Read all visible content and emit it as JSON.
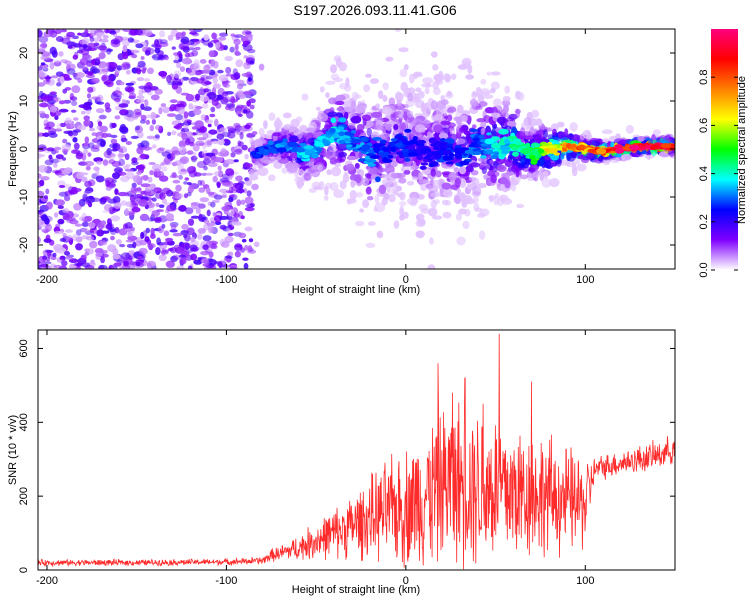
{
  "title": "S197.2026.093.11.41.G06",
  "chart_data": [
    {
      "type": "heatmap",
      "xlabel": "Height of straight line (km)",
      "ylabel": "Frequency (Hz)",
      "xlim": [
        -205,
        150
      ],
      "ylim": [
        -25,
        25
      ],
      "xticks": [
        -200,
        -100,
        0,
        100
      ],
      "yticks": [
        -20,
        -10,
        0,
        10,
        20
      ],
      "colorbar": {
        "label": "Normalized spectral amplitude",
        "range": [
          0,
          1
        ],
        "ticks": [
          0.0,
          0.2,
          0.4,
          0.6,
          0.8
        ],
        "tick_labels": [
          "0.0",
          "0.2",
          "0.4",
          "0.6",
          "0.8"
        ],
        "colors": [
          "#ffffff",
          "#8000ff",
          "#0000ff",
          "#00ffff",
          "#00ff00",
          "#ffff00",
          "#ff8000",
          "#ff0000",
          "#ff0080"
        ]
      },
      "ridge": {
        "x": [
          -85,
          -70,
          -55,
          -40,
          -30,
          -20,
          -10,
          0,
          10,
          20,
          30,
          40,
          50,
          60,
          70,
          80,
          90,
          100,
          110,
          120,
          130,
          140,
          150
        ],
        "freq": [
          -1.5,
          1,
          -1,
          4,
          2,
          -1,
          0,
          1,
          -1,
          0,
          -1,
          1,
          0,
          1,
          -1,
          0,
          0.5,
          0,
          -0.5,
          0,
          0.5,
          0.5,
          0.5
        ],
        "amplitude": [
          0.25,
          0.3,
          0.35,
          0.35,
          0.3,
          0.3,
          0.25,
          0.25,
          0.2,
          0.25,
          0.25,
          0.3,
          0.35,
          0.4,
          0.45,
          0.6,
          0.7,
          0.75,
          0.85,
          0.9,
          0.95,
          0.95,
          0.95
        ],
        "spread_hz": [
          2,
          3,
          4,
          6,
          7,
          8,
          8,
          9,
          9,
          9,
          8,
          8,
          7,
          6,
          4,
          3,
          2,
          1.5,
          1.2,
          1,
          1,
          1,
          1
        ]
      },
      "noise_region": {
        "x": [
          -205,
          -85
        ],
        "amplitude": 0.15
      }
    },
    {
      "type": "line",
      "xlabel": "Height of straight line (km)",
      "ylabel": "SNR (10 * v/v)",
      "xlim": [
        -205,
        150
      ],
      "ylim": [
        0,
        650
      ],
      "xticks": [
        -200,
        -100,
        0,
        100
      ],
      "yticks": [
        0,
        200,
        400,
        600
      ],
      "color": "#ff2a2a",
      "envelope": {
        "x": [
          -205,
          -150,
          -100,
          -80,
          -75,
          -70,
          -60,
          -50,
          -40,
          -30,
          -20,
          -10,
          0,
          10,
          20,
          30,
          40,
          50,
          60,
          70,
          80,
          90,
          100,
          105,
          110,
          120,
          130,
          140,
          150
        ],
        "mean": [
          20,
          20,
          22,
          25,
          40,
          45,
          60,
          80,
          100,
          120,
          140,
          160,
          170,
          200,
          230,
          240,
          230,
          220,
          210,
          210,
          200,
          190,
          180,
          270,
          280,
          290,
          300,
          310,
          330
        ],
        "amp": [
          10,
          10,
          10,
          12,
          20,
          25,
          40,
          60,
          80,
          100,
          130,
          160,
          190,
          220,
          250,
          260,
          260,
          250,
          230,
          210,
          190,
          170,
          150,
          40,
          40,
          40,
          45,
          45,
          45
        ]
      },
      "peaks": [
        {
          "x": 52,
          "y": 640
        },
        {
          "x": 18,
          "y": 560
        },
        {
          "x": 33,
          "y": 520
        },
        {
          "x": 70,
          "y": 510
        },
        {
          "x": 26,
          "y": 480
        },
        {
          "x": 43,
          "y": 450
        }
      ]
    }
  ]
}
